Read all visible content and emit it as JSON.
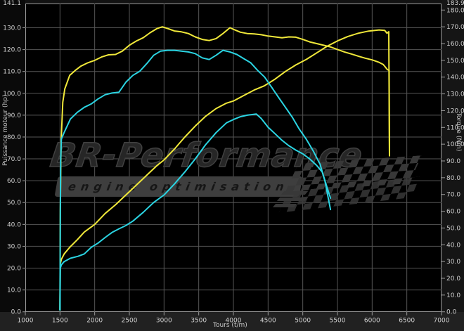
{
  "watermark": {
    "brand": "BR-Performance",
    "tagline": "engine optimisation"
  },
  "chart_data": {
    "type": "line",
    "title": "",
    "xlabel": "Tours (t/m)",
    "ylabel_left": "Puissance moteur (hp)",
    "ylabel_right": "Torque (Nm)",
    "xlim": [
      1000,
      7000
    ],
    "ylim_left": [
      0,
      141.1
    ],
    "ylim_right": [
      0,
      183.9
    ],
    "grid": true,
    "grid_color": "#565656",
    "axis_border_color": "#9a9a9a",
    "tick_label_color": "#d0d0d0",
    "x_ticks": [
      1000,
      1500,
      2000,
      2500,
      3000,
      3500,
      4000,
      4500,
      5000,
      5500,
      6000,
      6500,
      7000
    ],
    "y_ticks_left": {
      "values": [
        0,
        10,
        20,
        30,
        40,
        50,
        60,
        70,
        80,
        90,
        100,
        110,
        120,
        130
      ],
      "labels": [
        "0.0",
        "10.0",
        "20.0",
        "30.0",
        "40.0",
        "50.0",
        "60.0",
        "70.0",
        "80.0",
        "90.0",
        "100.0",
        "110.0",
        "120.0",
        "130.0"
      ],
      "max_value": 141.1,
      "max_label": "141.1"
    },
    "y_ticks_right": {
      "values": [
        0,
        10,
        20,
        30,
        40,
        50,
        60,
        70,
        80,
        90,
        100,
        110,
        120,
        130,
        140,
        150,
        160,
        170,
        180
      ],
      "labels": [
        "0.0",
        "10.0",
        "20.0",
        "30.0",
        "40.0",
        "50.0",
        "60.0",
        "70.0",
        "80.0",
        "90.0",
        "100.0",
        "110.0",
        "120.0",
        "130.0",
        "140.0",
        "150.0",
        "160.0",
        "170.0",
        "180.0"
      ],
      "max_value": 183.9,
      "max_label": "183.9"
    },
    "series": [
      {
        "name": "power-tuned",
        "axis": "left",
        "unit": "hp",
        "color": "#f0e83a",
        "points": [
          [
            1500,
            1
          ],
          [
            1505,
            22
          ],
          [
            1520,
            24
          ],
          [
            1560,
            26.5
          ],
          [
            1640,
            29.5
          ],
          [
            1750,
            33
          ],
          [
            1850,
            36.5
          ],
          [
            2000,
            40
          ],
          [
            2150,
            45
          ],
          [
            2300,
            49
          ],
          [
            2450,
            53.5
          ],
          [
            2600,
            58
          ],
          [
            2750,
            62.5
          ],
          [
            2900,
            67
          ],
          [
            3000,
            69.5
          ],
          [
            3150,
            74.5
          ],
          [
            3300,
            80
          ],
          [
            3450,
            85
          ],
          [
            3600,
            89.5
          ],
          [
            3750,
            93
          ],
          [
            3900,
            95.5
          ],
          [
            4000,
            96.5
          ],
          [
            4150,
            99
          ],
          [
            4300,
            101.5
          ],
          [
            4450,
            103.5
          ],
          [
            4600,
            106.5
          ],
          [
            4750,
            110
          ],
          [
            4900,
            113
          ],
          [
            5050,
            115.5
          ],
          [
            5200,
            118.5
          ],
          [
            5350,
            121.5
          ],
          [
            5500,
            124
          ],
          [
            5650,
            126
          ],
          [
            5800,
            127.5
          ],
          [
            5950,
            128.5
          ],
          [
            6100,
            129
          ],
          [
            6180,
            128.8
          ],
          [
            6215,
            127.5
          ],
          [
            6240,
            128.2
          ],
          [
            6250,
            71.5
          ]
        ]
      },
      {
        "name": "torque-tuned",
        "axis": "right",
        "unit": "Nm",
        "color": "#f0e83a",
        "points": [
          [
            1500,
            1
          ],
          [
            1505,
            60
          ],
          [
            1515,
            100
          ],
          [
            1540,
            125
          ],
          [
            1570,
            133
          ],
          [
            1640,
            141
          ],
          [
            1720,
            144
          ],
          [
            1800,
            146.5
          ],
          [
            1900,
            148.5
          ],
          [
            2000,
            150
          ],
          [
            2100,
            152
          ],
          [
            2200,
            153.3
          ],
          [
            2300,
            153.5
          ],
          [
            2400,
            155.5
          ],
          [
            2500,
            159
          ],
          [
            2600,
            161.5
          ],
          [
            2700,
            163.5
          ],
          [
            2800,
            166.5
          ],
          [
            2900,
            169
          ],
          [
            2975,
            170
          ],
          [
            3050,
            169
          ],
          [
            3150,
            167.5
          ],
          [
            3250,
            167
          ],
          [
            3350,
            166
          ],
          [
            3450,
            164
          ],
          [
            3550,
            162.5
          ],
          [
            3650,
            161.8
          ],
          [
            3750,
            163
          ],
          [
            3850,
            166
          ],
          [
            3950,
            169.5
          ],
          [
            4000,
            168.5
          ],
          [
            4100,
            166.8
          ],
          [
            4200,
            166
          ],
          [
            4300,
            165.8
          ],
          [
            4400,
            165.3
          ],
          [
            4500,
            164.5
          ],
          [
            4600,
            164
          ],
          [
            4700,
            163.5
          ],
          [
            4800,
            164
          ],
          [
            4900,
            163.8
          ],
          [
            5000,
            162.5
          ],
          [
            5100,
            161
          ],
          [
            5200,
            160
          ],
          [
            5300,
            159
          ],
          [
            5400,
            158
          ],
          [
            5500,
            156.5
          ],
          [
            5600,
            155
          ],
          [
            5700,
            153.8
          ],
          [
            5800,
            152.5
          ],
          [
            5900,
            151.3
          ],
          [
            6000,
            150.3
          ],
          [
            6100,
            148.8
          ],
          [
            6160,
            147.5
          ],
          [
            6220,
            144.5
          ],
          [
            6245,
            144
          ],
          [
            6250,
            93
          ]
        ]
      },
      {
        "name": "torque-stock",
        "axis": "right",
        "unit": "Nm",
        "color": "#2bd4e2",
        "points": [
          [
            1500,
            1
          ],
          [
            1505,
            60
          ],
          [
            1510,
            90
          ],
          [
            1520,
            103
          ],
          [
            1560,
            107
          ],
          [
            1650,
            115
          ],
          [
            1750,
            119
          ],
          [
            1850,
            122
          ],
          [
            1950,
            124
          ],
          [
            2050,
            127
          ],
          [
            2150,
            129.5
          ],
          [
            2250,
            130.5
          ],
          [
            2350,
            131
          ],
          [
            2450,
            137
          ],
          [
            2550,
            141
          ],
          [
            2650,
            143.5
          ],
          [
            2750,
            148
          ],
          [
            2850,
            153
          ],
          [
            2950,
            155.5
          ],
          [
            3050,
            156
          ],
          [
            3150,
            156
          ],
          [
            3250,
            155.5
          ],
          [
            3350,
            155
          ],
          [
            3450,
            154
          ],
          [
            3550,
            151.5
          ],
          [
            3650,
            150.5
          ],
          [
            3750,
            153
          ],
          [
            3850,
            156
          ],
          [
            3950,
            155
          ],
          [
            4050,
            153.5
          ],
          [
            4150,
            151
          ],
          [
            4250,
            148.5
          ],
          [
            4350,
            144
          ],
          [
            4450,
            140
          ],
          [
            4550,
            134
          ],
          [
            4650,
            128
          ],
          [
            4750,
            122
          ],
          [
            4850,
            116
          ],
          [
            4950,
            109
          ],
          [
            5050,
            103
          ],
          [
            5150,
            96
          ],
          [
            5250,
            88
          ],
          [
            5320,
            78
          ],
          [
            5400,
            61
          ]
        ]
      },
      {
        "name": "power-stock",
        "axis": "left",
        "unit": "hp",
        "color": "#2bd4e2",
        "points": [
          [
            1500,
            1
          ],
          [
            1505,
            20
          ],
          [
            1520,
            21.5
          ],
          [
            1560,
            23
          ],
          [
            1650,
            24.5
          ],
          [
            1760,
            25.4
          ],
          [
            1850,
            26.5
          ],
          [
            1950,
            29.5
          ],
          [
            2050,
            31.5
          ],
          [
            2150,
            34
          ],
          [
            2250,
            36.3
          ],
          [
            2350,
            38
          ],
          [
            2450,
            39.5
          ],
          [
            2550,
            41.5
          ],
          [
            2700,
            45.5
          ],
          [
            2850,
            50
          ],
          [
            3000,
            53.5
          ],
          [
            3150,
            58.5
          ],
          [
            3300,
            64
          ],
          [
            3450,
            70
          ],
          [
            3600,
            76.5
          ],
          [
            3750,
            82
          ],
          [
            3900,
            86.5
          ],
          [
            4000,
            88
          ],
          [
            4100,
            89.3
          ],
          [
            4200,
            90
          ],
          [
            4330,
            90.5
          ],
          [
            4400,
            88.5
          ],
          [
            4500,
            84.5
          ],
          [
            4600,
            81.5
          ],
          [
            4700,
            78.5
          ],
          [
            4800,
            76
          ],
          [
            4900,
            74
          ],
          [
            5000,
            72.3
          ],
          [
            5100,
            70
          ],
          [
            5200,
            67
          ],
          [
            5280,
            64
          ],
          [
            5350,
            57
          ],
          [
            5400,
            52
          ]
        ]
      }
    ]
  }
}
